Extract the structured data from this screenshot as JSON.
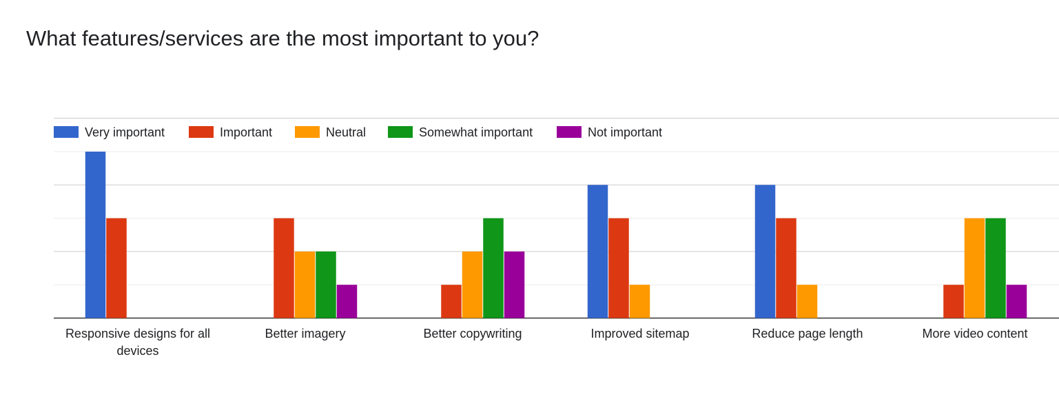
{
  "chart_data": {
    "type": "bar",
    "title": "What features/services are the most important to you?",
    "categories": [
      "Responsive designs for all devices",
      "Better imagery",
      "Better copywriting",
      "Improved sitemap",
      "Reduce page length",
      "More video content"
    ],
    "series": [
      {
        "name": "Very important",
        "color": "#3366cc",
        "values": [
          5,
          0,
          0,
          4,
          4,
          0
        ]
      },
      {
        "name": "Important",
        "color": "#dc3912",
        "values": [
          3,
          3,
          1,
          3,
          3,
          1
        ]
      },
      {
        "name": "Neutral",
        "color": "#ff9900",
        "values": [
          0,
          2,
          2,
          1,
          1,
          3
        ]
      },
      {
        "name": "Somewhat important",
        "color": "#109618",
        "values": [
          0,
          2,
          3,
          0,
          0,
          3
        ]
      },
      {
        "name": "Not important",
        "color": "#990099",
        "values": [
          0,
          1,
          2,
          0,
          0,
          1
        ]
      }
    ],
    "ylim": [
      0,
      5
    ],
    "grid": true,
    "legend_position": "top-left"
  }
}
